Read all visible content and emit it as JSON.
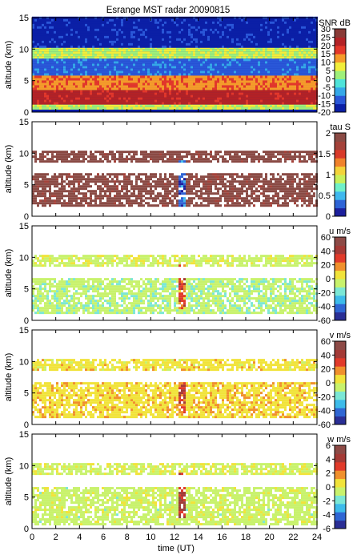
{
  "title": "Esrange MST radar 20090815",
  "x_axis": {
    "label": "time (UT)",
    "ticks": [
      "0",
      "2",
      "4",
      "6",
      "8",
      "10",
      "12",
      "14",
      "16",
      "18",
      "20",
      "22",
      "24"
    ],
    "range": [
      0,
      24
    ]
  },
  "chart_data": [
    {
      "type": "heatmap",
      "title": "Esrange MST radar 20090815",
      "ylabel": "altitude (km)",
      "xlim": [
        0,
        24
      ],
      "ylim": [
        0,
        15
      ],
      "y_ticks": [
        "0",
        "5",
        "10",
        "15"
      ],
      "colorbar": {
        "label": "SNR dB",
        "range": [
          -20,
          30
        ],
        "ticks": [
          "30",
          "25",
          "20",
          "15",
          "10",
          "5",
          "0",
          "-5",
          "-10",
          "-15",
          "-20"
        ]
      },
      "colorscale": [
        "#0b1fa6",
        "#2a57d8",
        "#35a8e8",
        "#4fe3d9",
        "#9ef07a",
        "#f1ee3b",
        "#f59b2a",
        "#e3372a",
        "#b32226",
        "#8a3a36"
      ],
      "layers": [
        {
          "alt_range": [
            0.4,
            1.2
          ],
          "value": 5
        },
        {
          "alt_range": [
            1.2,
            3.5
          ],
          "value": 22
        },
        {
          "alt_range": [
            3.5,
            5.8
          ],
          "value": 14
        },
        {
          "alt_range": [
            5.8,
            8.5
          ],
          "value": -12
        },
        {
          "alt_range": [
            8.5,
            10.2
          ],
          "value": 5
        },
        {
          "alt_range": [
            10.2,
            15
          ],
          "value": -17
        }
      ]
    },
    {
      "type": "heatmap",
      "ylabel": "altitude (km)",
      "xlim": [
        0,
        24
      ],
      "ylim": [
        0,
        15
      ],
      "y_ticks": [
        "0",
        "5",
        "10",
        "15"
      ],
      "colorbar": {
        "label": "tau S",
        "range": [
          0,
          2
        ],
        "ticks": [
          "2",
          "1.5",
          "1",
          "0.5",
          "0"
        ]
      },
      "colorscale": [
        "#1c1f9c",
        "#2e64d6",
        "#3fb8ee",
        "#6ff0c8",
        "#c8f05a",
        "#f3d33a",
        "#f0822c",
        "#d83a2a",
        "#a4423a",
        "#8a4a44"
      ],
      "layers": [
        {
          "alt_range": [
            1.5,
            6.5
          ],
          "value": 1.9
        },
        {
          "alt_range": [
            8.5,
            10.3
          ],
          "value": 1.9
        }
      ],
      "event": {
        "time": 12.5,
        "alt_range": [
          1.5,
          8.5
        ],
        "value": 0.3
      }
    },
    {
      "type": "heatmap",
      "ylabel": "altitude (km)",
      "xlim": [
        0,
        24
      ],
      "ylim": [
        0,
        15
      ],
      "y_ticks": [
        "0",
        "5",
        "10",
        "15"
      ],
      "colorbar": {
        "label": "u m/s",
        "range": [
          -60,
          60
        ],
        "ticks": [
          "60",
          "40",
          "20",
          "0",
          "-20",
          "-40",
          "-60"
        ]
      },
      "colorscale": [
        "#2a2e95",
        "#2f66d3",
        "#3dbbea",
        "#7be7d5",
        "#c8f26c",
        "#f1e33a",
        "#f0902c",
        "#e13a2a",
        "#a43a36",
        "#8d4a46"
      ],
      "layers": [
        {
          "alt_range": [
            1.0,
            6.5
          ],
          "value": -8
        },
        {
          "alt_range": [
            8.5,
            10.2
          ],
          "value": -4
        }
      ],
      "event": {
        "time": 12.5,
        "alt_range": [
          1.5,
          8.5
        ],
        "value": 25
      }
    },
    {
      "type": "heatmap",
      "ylabel": "altitude (km)",
      "xlim": [
        0,
        24
      ],
      "ylim": [
        0,
        15
      ],
      "y_ticks": [
        "0",
        "5",
        "10",
        "15"
      ],
      "colorbar": {
        "label": "v m/s",
        "range": [
          -60,
          60
        ],
        "ticks": [
          "60",
          "40",
          "20",
          "0",
          "-20",
          "-40",
          "-60"
        ]
      },
      "colorscale": [
        "#2a2e95",
        "#2f66d3",
        "#3dbbea",
        "#7be7d5",
        "#c8f26c",
        "#f1e33a",
        "#f0902c",
        "#e13a2a",
        "#a43a36",
        "#8d4a46"
      ],
      "layers": [
        {
          "alt_range": [
            1.0,
            6.5
          ],
          "value": 8
        },
        {
          "alt_range": [
            8.5,
            10.2
          ],
          "value": 6
        }
      ],
      "event": {
        "time": 12.5,
        "alt_range": [
          1.5,
          8.5
        ],
        "value": 30
      }
    },
    {
      "type": "heatmap",
      "ylabel": "altitude (km)",
      "xlim": [
        0,
        24
      ],
      "ylim": [
        0,
        15
      ],
      "y_ticks": [
        "0",
        "5",
        "10",
        "15"
      ],
      "colorbar": {
        "label": "w m/s",
        "range": [
          -6,
          6
        ],
        "ticks": [
          "6",
          "4",
          "2",
          "0",
          "-2",
          "-4",
          "-6"
        ]
      },
      "colorscale": [
        "#2a2e95",
        "#2f66d3",
        "#3dbbea",
        "#7be7d5",
        "#c8f26c",
        "#f1e33a",
        "#f0902c",
        "#e13a2a",
        "#a43a36",
        "#8d4a46"
      ],
      "layers": [
        {
          "alt_range": [
            0.5,
            6.5
          ],
          "value": -0.5
        },
        {
          "alt_range": [
            8.5,
            10.2
          ],
          "value": -0.3
        }
      ],
      "event": {
        "time": 12.5,
        "alt_range": [
          1.5,
          8.5
        ],
        "value": 4
      }
    }
  ]
}
